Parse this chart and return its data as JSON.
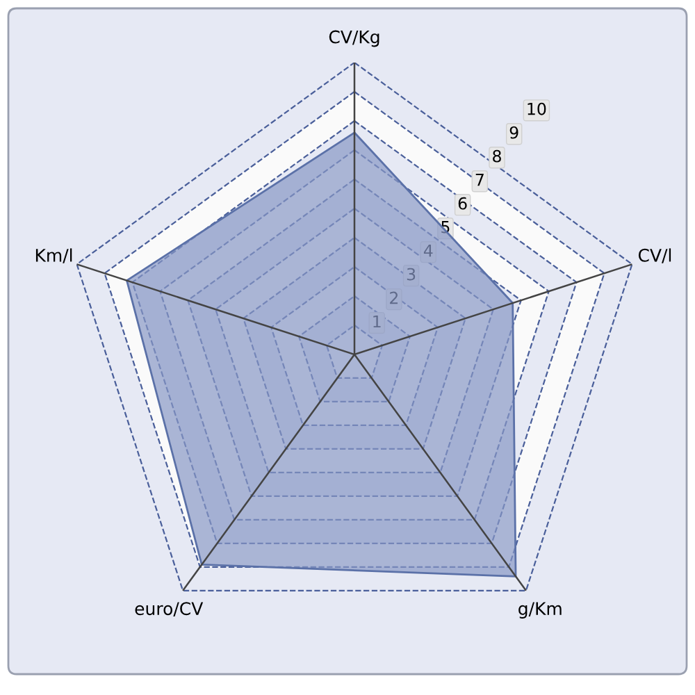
{
  "chart_data": {
    "type": "radar",
    "categories": [
      "CV/Kg",
      "CV/l",
      "g/Km",
      "euro/CV",
      "Km/l"
    ],
    "series": [
      {
        "color": "#8797c4",
        "values": [
          7.6,
          5.7,
          9.4,
          8.9,
          8.2
        ]
      }
    ],
    "ylim": [
      0,
      10
    ],
    "yticks": [
      1,
      2,
      3,
      4,
      5,
      6,
      7,
      8,
      9,
      10
    ],
    "grid": true,
    "line_style": "dashed"
  }
}
